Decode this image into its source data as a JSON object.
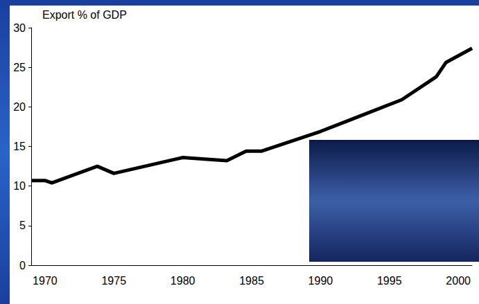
{
  "chart_data": {
    "type": "line",
    "title": "Export % of GDP",
    "x": [
      1969,
      1970,
      1970.5,
      1973.8,
      1975,
      1980,
      1983.2,
      1984.6,
      1985.7,
      1990,
      1995.9,
      1998.4,
      1999.1,
      2001
    ],
    "values": [
      10.7,
      10.7,
      10.4,
      12.5,
      11.6,
      13.6,
      13.2,
      14.4,
      14.4,
      16.9,
      20.9,
      23.8,
      25.6,
      27.4
    ],
    "color": "#000000",
    "xlim": [
      1969,
      2001
    ],
    "xticks": [
      1970,
      1975,
      1980,
      1985,
      1990,
      1995,
      2000
    ],
    "ylim": [
      0,
      30
    ],
    "yticks": [
      0,
      5,
      10,
      15,
      20,
      25,
      30
    ],
    "grid": false
  }
}
